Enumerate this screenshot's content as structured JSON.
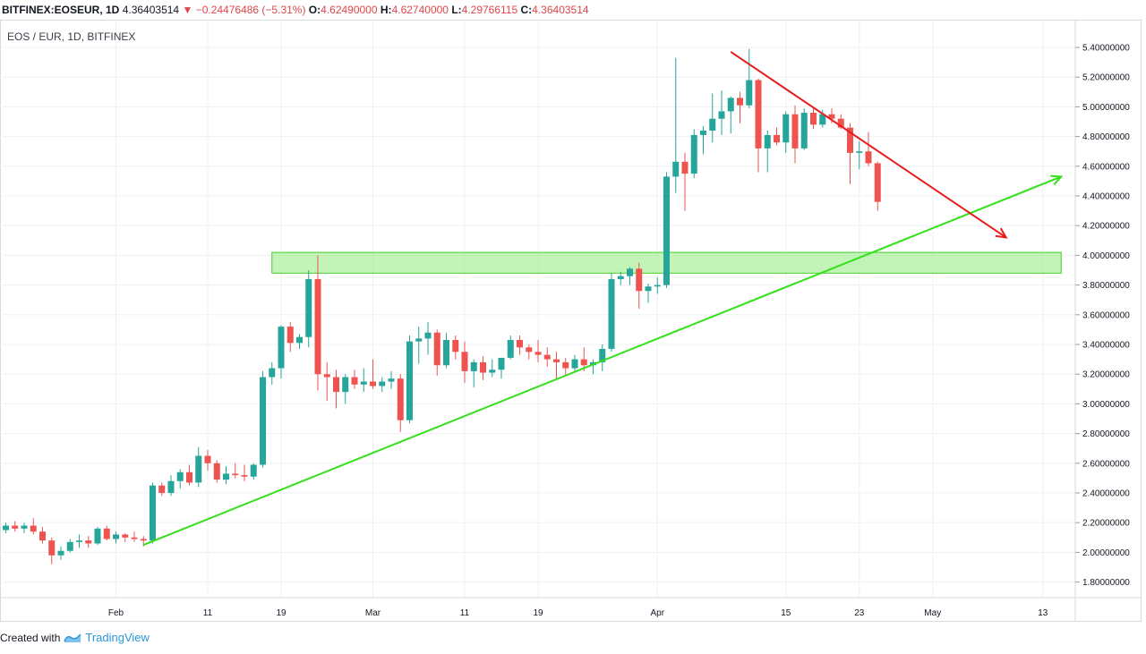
{
  "header": {
    "symbol": "BITFINEX:EOSEUR, 1D",
    "last": "4.36403514",
    "change_arrow": "▼",
    "change": "−0.24476486 (−5.31%)",
    "o_label": "O:",
    "o_value": "4.62490000",
    "h_label": "H:",
    "h_value": "4.62740000",
    "l_label": "L:",
    "l_value": "4.29766115",
    "c_label": "C:",
    "c_value": "4.36403514"
  },
  "subtitle": "EOS / EUR, 1D, BITFINEX",
  "footer": {
    "created_with": "Created with",
    "brand": "TradingView"
  },
  "colors": {
    "up": "#26a69a",
    "down": "#ef5350",
    "support_line": "#33e01a",
    "resistance_line": "#e81c1c",
    "zone_fill": "#aef0a0",
    "zone_stroke": "#44d02a",
    "grid": "#eef0f3",
    "border": "#d6dcde"
  },
  "chart_data": {
    "type": "candlestick",
    "ylim": [
      1.7,
      5.5
    ],
    "x_tick_labels": [
      {
        "day": 12,
        "label": "Feb"
      },
      {
        "day": 22,
        "label": "11"
      },
      {
        "day": 30,
        "label": "19"
      },
      {
        "day": 40,
        "label": "Mar"
      },
      {
        "day": 50,
        "label": "11"
      },
      {
        "day": 58,
        "label": "19"
      },
      {
        "day": 71,
        "label": "Apr"
      },
      {
        "day": 85,
        "label": "15"
      },
      {
        "day": 93,
        "label": "23"
      },
      {
        "day": 101,
        "label": "May"
      },
      {
        "day": 113,
        "label": "13"
      }
    ],
    "y_tick_labels": [
      "5.40000000",
      "5.20000000",
      "5.00000000",
      "4.80000000",
      "4.60000000",
      "4.40000000",
      "4.20000000",
      "4.00000000",
      "3.80000000",
      "3.60000000",
      "3.40000000",
      "3.20000000",
      "3.00000000",
      "2.80000000",
      "2.60000000",
      "2.40000000",
      "2.20000000",
      "2.00000000",
      "1.80000000"
    ],
    "candles": [
      [
        2.15,
        2.2,
        2.13,
        2.18
      ],
      [
        2.18,
        2.21,
        2.14,
        2.16
      ],
      [
        2.16,
        2.2,
        2.13,
        2.18
      ],
      [
        2.18,
        2.23,
        2.12,
        2.14
      ],
      [
        2.14,
        2.17,
        2.06,
        2.08
      ],
      [
        2.08,
        2.1,
        1.92,
        1.98
      ],
      [
        1.98,
        2.04,
        1.95,
        2.01
      ],
      [
        2.01,
        2.09,
        2.0,
        2.07
      ],
      [
        2.07,
        2.12,
        2.03,
        2.08
      ],
      [
        2.08,
        2.11,
        2.03,
        2.06
      ],
      [
        2.06,
        2.17,
        2.05,
        2.16
      ],
      [
        2.16,
        2.18,
        2.08,
        2.09
      ],
      [
        2.09,
        2.14,
        2.06,
        2.12
      ],
      [
        2.12,
        2.13,
        2.07,
        2.1
      ],
      [
        2.1,
        2.14,
        2.07,
        2.09
      ],
      [
        2.09,
        2.11,
        2.04,
        2.08
      ],
      [
        2.08,
        2.47,
        2.06,
        2.45
      ],
      [
        2.45,
        2.47,
        2.38,
        2.4
      ],
      [
        2.4,
        2.52,
        2.38,
        2.48
      ],
      [
        2.48,
        2.56,
        2.43,
        2.54
      ],
      [
        2.54,
        2.59,
        2.45,
        2.47
      ],
      [
        2.47,
        2.71,
        2.44,
        2.65
      ],
      [
        2.65,
        2.69,
        2.55,
        2.6
      ],
      [
        2.6,
        2.62,
        2.47,
        2.49
      ],
      [
        2.49,
        2.58,
        2.46,
        2.53
      ],
      [
        2.53,
        2.6,
        2.5,
        2.52
      ],
      [
        2.52,
        2.59,
        2.48,
        2.51
      ],
      [
        2.51,
        2.6,
        2.49,
        2.59
      ],
      [
        2.59,
        3.22,
        2.57,
        3.18
      ],
      [
        3.18,
        3.28,
        3.13,
        3.24
      ],
      [
        3.24,
        3.53,
        3.17,
        3.52
      ],
      [
        3.52,
        3.55,
        3.35,
        3.41
      ],
      [
        3.41,
        3.47,
        3.37,
        3.45
      ],
      [
        3.45,
        3.9,
        3.38,
        3.84
      ],
      [
        3.84,
        4.0,
        3.09,
        3.2
      ],
      [
        3.2,
        3.28,
        3.02,
        3.18
      ],
      [
        3.18,
        3.23,
        2.97,
        3.08
      ],
      [
        3.08,
        3.2,
        3.0,
        3.18
      ],
      [
        3.18,
        3.23,
        3.1,
        3.13
      ],
      [
        3.13,
        3.24,
        3.08,
        3.15
      ],
      [
        3.15,
        3.3,
        3.1,
        3.12
      ],
      [
        3.12,
        3.18,
        3.08,
        3.15
      ],
      [
        3.15,
        3.22,
        3.1,
        3.17
      ],
      [
        3.17,
        3.2,
        2.81,
        2.89
      ],
      [
        2.89,
        3.46,
        2.87,
        3.42
      ],
      [
        3.42,
        3.52,
        3.27,
        3.44
      ],
      [
        3.44,
        3.55,
        3.33,
        3.48
      ],
      [
        3.48,
        3.5,
        3.19,
        3.26
      ],
      [
        3.26,
        3.48,
        3.24,
        3.43
      ],
      [
        3.43,
        3.46,
        3.3,
        3.35
      ],
      [
        3.35,
        3.42,
        3.14,
        3.22
      ],
      [
        3.22,
        3.3,
        3.11,
        3.28
      ],
      [
        3.28,
        3.32,
        3.16,
        3.21
      ],
      [
        3.21,
        3.3,
        3.18,
        3.23
      ],
      [
        3.23,
        3.31,
        3.17,
        3.31
      ],
      [
        3.31,
        3.46,
        3.3,
        3.43
      ],
      [
        3.43,
        3.46,
        3.33,
        3.38
      ],
      [
        3.38,
        3.4,
        3.3,
        3.35
      ],
      [
        3.35,
        3.43,
        3.28,
        3.33
      ],
      [
        3.33,
        3.38,
        3.25,
        3.3
      ],
      [
        3.3,
        3.35,
        3.17,
        3.28
      ],
      [
        3.28,
        3.31,
        3.19,
        3.24
      ],
      [
        3.24,
        3.33,
        3.21,
        3.3
      ],
      [
        3.3,
        3.38,
        3.22,
        3.26
      ],
      [
        3.26,
        3.3,
        3.2,
        3.28
      ],
      [
        3.28,
        3.4,
        3.22,
        3.37
      ],
      [
        3.37,
        3.88,
        3.35,
        3.84
      ],
      [
        3.84,
        3.89,
        3.8,
        3.86
      ],
      [
        3.86,
        3.92,
        3.8,
        3.91
      ],
      [
        3.91,
        3.95,
        3.64,
        3.76
      ],
      [
        3.76,
        3.81,
        3.68,
        3.79
      ],
      [
        3.79,
        3.85,
        3.74,
        3.8
      ],
      [
        3.8,
        4.56,
        3.78,
        4.53
      ],
      [
        4.53,
        5.33,
        4.42,
        4.63
      ],
      [
        4.63,
        4.69,
        4.3,
        4.55
      ],
      [
        4.55,
        4.85,
        4.52,
        4.81
      ],
      [
        4.81,
        4.87,
        4.68,
        4.84
      ],
      [
        4.84,
        5.09,
        4.76,
        4.92
      ],
      [
        4.92,
        5.11,
        4.81,
        4.97
      ],
      [
        4.97,
        5.07,
        4.82,
        5.06
      ],
      [
        5.06,
        5.1,
        4.89,
        5.01
      ],
      [
        5.01,
        5.39,
        4.99,
        5.18
      ],
      [
        5.18,
        5.19,
        4.56,
        4.72
      ],
      [
        4.72,
        4.84,
        4.56,
        4.81
      ],
      [
        4.81,
        4.86,
        4.74,
        4.76
      ],
      [
        4.76,
        4.97,
        4.69,
        4.95
      ],
      [
        4.95,
        5.01,
        4.62,
        4.72
      ],
      [
        4.72,
        4.99,
        4.71,
        4.96
      ],
      [
        4.96,
        4.99,
        4.85,
        4.88
      ],
      [
        4.88,
        4.98,
        4.86,
        4.95
      ],
      [
        4.95,
        4.99,
        4.89,
        4.92
      ],
      [
        4.92,
        4.95,
        4.85,
        4.86
      ],
      [
        4.86,
        4.89,
        4.48,
        4.69
      ],
      [
        4.69,
        4.77,
        4.58,
        4.7
      ],
      [
        4.7,
        4.83,
        4.6,
        4.62
      ],
      [
        4.62,
        4.63,
        4.3,
        4.36
      ]
    ],
    "candle_x_start": 0,
    "support_line": {
      "from": [
        15,
        2.05
      ],
      "to": [
        115,
        4.53
      ]
    },
    "resistance_line": {
      "from": [
        79,
        5.37
      ],
      "to": [
        109,
        4.12
      ]
    },
    "zone": {
      "x_from": 29,
      "x_to": 115,
      "y_from": 3.88,
      "y_to": 4.02
    }
  }
}
